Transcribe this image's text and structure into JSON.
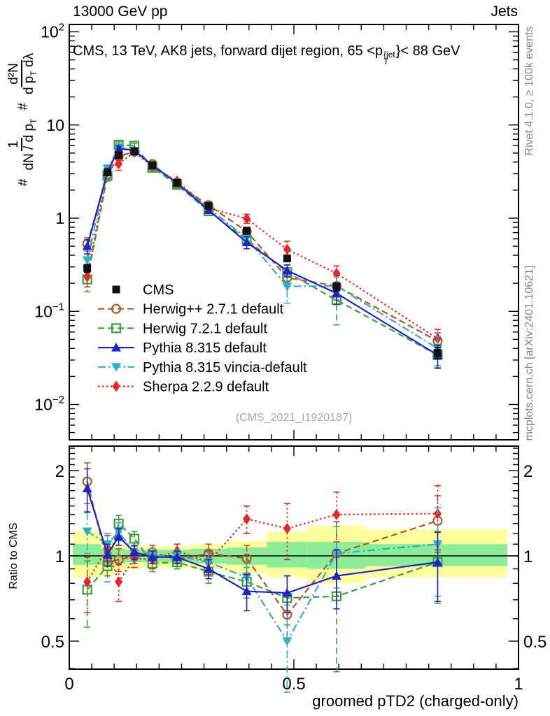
{
  "header": {
    "left": "13000 GeV pp",
    "right": "Jets"
  },
  "side_notes": {
    "top": "Rivet 4.1.0, ≥ 100k events",
    "bottom": "mcplots.cern.ch [arXiv:2401.10621]"
  },
  "watermark": "(CMS_2021_I1920187)",
  "title_parts": {
    "prefix": "CMS, 13 TeV, AK8 jets, forward dijet region, 65 <p",
    "sup": "{jet",
    "sub": "T",
    "suffix": "}< 88 GeV"
  },
  "ylabel_parts": {
    "hash1": "#",
    "frac1_num": "1",
    "frac1_den_a": "dN / d p",
    "frac1_den_sub": "T",
    "hash2": "#",
    "frac2_num": "d²N",
    "frac2_den_a": "d p",
    "frac2_den_sub": "T",
    "frac2_den_b": " dλ"
  },
  "ratio_ylabel": "Ratio to CMS",
  "chart_data": {
    "type": "line",
    "title": "CMS, 13 TeV, AK8 jets, forward dijet region, 65 <p^{jet}_T}< 88 GeV",
    "xlabel": "groomed pTD2 (charged-only)",
    "ratio_ylabel": "Ratio to CMS",
    "grid": false,
    "legend_position": "inside-left",
    "xlim": [
      0,
      1
    ],
    "ylim_main": [
      0.0042,
      118
    ],
    "ylim_ratio": [
      0.4,
      2.45
    ],
    "x_ticks": [
      "0",
      "0.5",
      "1"
    ],
    "x_tick_values": [
      0,
      0.5,
      1
    ],
    "y_ticks_main": [
      "10^2",
      "10",
      "1",
      "10^-1",
      "10^-2"
    ],
    "y_ticks_ratio": [
      "2",
      "1",
      "0.5"
    ],
    "x": [
      0.04,
      0.085,
      0.11,
      0.145,
      0.185,
      0.24,
      0.31,
      0.395,
      0.485,
      0.595,
      0.82
    ],
    "bin_edges": [
      0.008,
      0.07,
      0.1,
      0.125,
      0.16,
      0.21,
      0.27,
      0.35,
      0.44,
      0.53,
      0.66,
      0.975
    ],
    "series": [
      {
        "id": "cms",
        "name": "CMS",
        "color": "#111111",
        "marker": "square",
        "line": "none",
        "values": [
          0.29,
          3.1,
          4.73,
          5.2,
          3.7,
          2.4,
          1.35,
          0.73,
          0.37,
          0.183,
          0.036
        ],
        "err_frac": [
          0.1,
          0.04,
          0.03,
          0.03,
          0.03,
          0.03,
          0.04,
          0.06,
          0.08,
          0.1,
          0.14
        ]
      },
      {
        "id": "herwigpp",
        "name": "Herwig++ 2.7.1 default",
        "color": "#b05a26",
        "marker": "circle-open",
        "line": "dashed",
        "values": [
          0.53,
          2.95,
          4.59,
          5.2,
          3.81,
          2.33,
          1.38,
          0.72,
          0.229,
          0.187,
          0.048
        ],
        "ratio": [
          1.83,
          0.95,
          0.97,
          1.0,
          1.03,
          0.97,
          1.02,
          0.98,
          0.62,
          1.02,
          1.33
        ],
        "ratio_err": [
          0.3,
          0.1,
          0.09,
          0.06,
          0.06,
          0.05,
          0.08,
          0.11,
          0.12,
          0.3,
          0.3
        ]
      },
      {
        "id": "herwig7",
        "name": "Herwig 7.2.1 default",
        "color": "#3da23d",
        "marker": "square-open",
        "line": "dashed",
        "values": [
          0.22,
          2.85,
          6.15,
          5.98,
          3.48,
          2.28,
          1.19,
          0.59,
          0.263,
          0.132,
          0.034
        ],
        "ratio": [
          0.76,
          0.92,
          1.3,
          1.15,
          0.94,
          0.95,
          0.88,
          0.81,
          0.71,
          0.72,
          0.95
        ],
        "ratio_err": [
          0.2,
          0.11,
          0.09,
          0.07,
          0.06,
          0.05,
          0.08,
          0.1,
          0.14,
          0.33,
          0.27
        ]
      },
      {
        "id": "pythia",
        "name": "Pythia 8.315 default",
        "color": "#2323cc",
        "marker": "triangle-up",
        "line": "solid",
        "values": [
          0.5,
          3.13,
          5.53,
          5.36,
          3.66,
          2.38,
          1.22,
          0.55,
          0.274,
          0.156,
          0.034
        ],
        "ratio": [
          1.73,
          1.01,
          1.17,
          1.03,
          0.99,
          0.99,
          0.9,
          0.75,
          0.74,
          0.85,
          0.95
        ],
        "ratio_err": [
          0.3,
          0.09,
          0.08,
          0.06,
          0.05,
          0.05,
          0.07,
          0.11,
          0.11,
          0.2,
          0.26
        ]
      },
      {
        "id": "vincia",
        "name": "Pythia 8.315 vincia-default",
        "color": "#2fb0c4",
        "marker": "triangle-down",
        "line": "dashdot",
        "values": [
          0.354,
          3.41,
          5.77,
          5.3,
          3.7,
          2.4,
          1.28,
          0.61,
          0.185,
          0.187,
          0.04
        ],
        "ratio": [
          1.22,
          1.1,
          1.22,
          1.02,
          1.0,
          1.0,
          0.95,
          0.84,
          0.5,
          1.02,
          1.1
        ],
        "ratio_err": [
          0.2,
          0.1,
          0.09,
          0.06,
          0.06,
          0.05,
          0.08,
          0.1,
          0.17,
          0.25,
          0.38
        ]
      },
      {
        "id": "sherpa",
        "name": "Sherpa 2.2.9 default",
        "color": "#ea2323",
        "marker": "diamond",
        "line": "dotted",
        "values": [
          0.235,
          3.32,
          3.83,
          5.1,
          3.59,
          2.5,
          1.28,
          0.99,
          0.462,
          0.256,
          0.051
        ],
        "ratio": [
          0.81,
          1.07,
          0.81,
          0.98,
          0.97,
          1.04,
          0.95,
          1.35,
          1.25,
          1.4,
          1.41
        ],
        "ratio_err": [
          0.18,
          0.11,
          0.12,
          0.07,
          0.07,
          0.06,
          0.09,
          0.15,
          0.28,
          0.28,
          0.36
        ]
      }
    ],
    "bands": {
      "yellow": "#ffff9e",
      "green": "#8dec97",
      "bins": [
        [
          0.84,
          1.22,
          0.93,
          1.1
        ],
        [
          0.86,
          1.12,
          0.93,
          1.06
        ],
        [
          0.88,
          1.1,
          0.94,
          1.06
        ],
        [
          0.9,
          1.09,
          0.95,
          1.05
        ],
        [
          0.91,
          1.08,
          0.95,
          1.05
        ],
        [
          0.91,
          1.08,
          0.95,
          1.05
        ],
        [
          0.9,
          1.1,
          0.94,
          1.06
        ],
        [
          0.87,
          1.13,
          0.93,
          1.07
        ],
        [
          0.84,
          1.22,
          0.91,
          1.12
        ],
        [
          0.8,
          1.28,
          0.9,
          1.12
        ],
        [
          0.84,
          1.24,
          0.92,
          1.1
        ]
      ]
    }
  }
}
